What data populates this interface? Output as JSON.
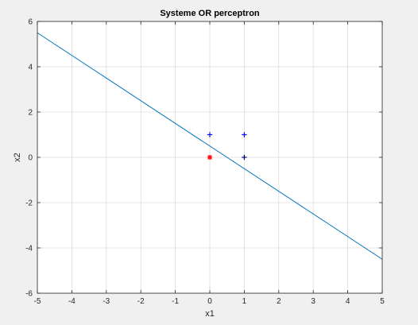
{
  "chart_data": {
    "type": "scatter",
    "title": "Systeme OR perceptron",
    "xlabel": "x1",
    "ylabel": "x2",
    "xlim": [
      -5,
      5
    ],
    "ylim": [
      -6,
      6
    ],
    "x_ticks": [
      -5,
      -4,
      -3,
      -2,
      -1,
      0,
      1,
      2,
      3,
      4,
      5
    ],
    "y_ticks": [
      -6,
      -4,
      -2,
      0,
      2,
      4,
      6
    ],
    "grid": true,
    "series": [
      {
        "marker": "+",
        "color": "#0000ff",
        "points": [
          [
            0,
            1
          ],
          [
            1,
            1
          ]
        ]
      },
      {
        "marker": "+",
        "color": "#000080",
        "points": [
          [
            1,
            0
          ]
        ]
      },
      {
        "marker": "*",
        "color": "#ff0000",
        "points": [
          [
            0,
            0
          ]
        ]
      }
    ],
    "lines": [
      {
        "color": "#0072bd",
        "points": [
          [
            -5,
            5.5
          ],
          [
            5,
            -4.5
          ]
        ]
      }
    ]
  }
}
